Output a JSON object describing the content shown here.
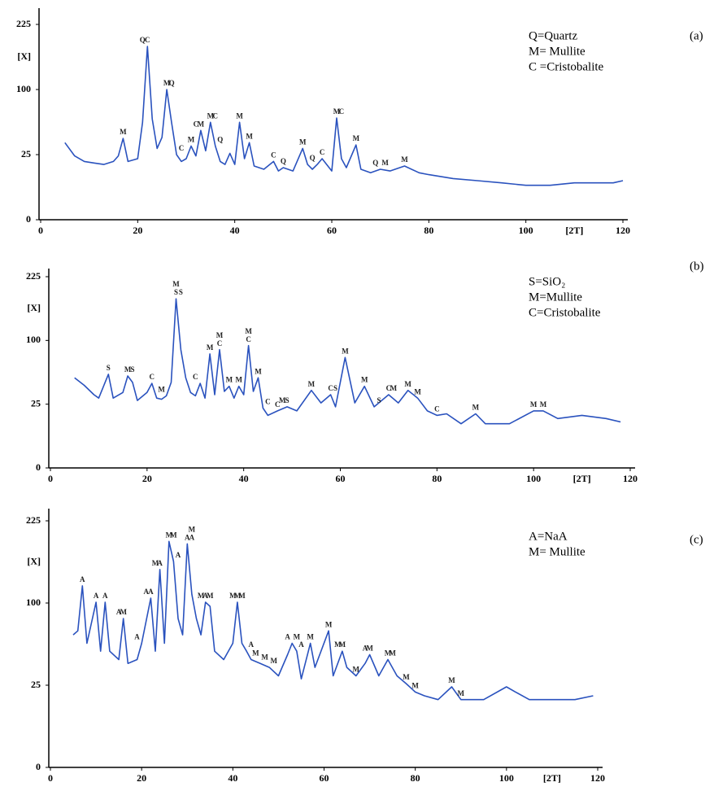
{
  "chart_data": [
    {
      "type": "line",
      "scale": "sqrt",
      "y_label": "[X]",
      "x_label": "[2T]",
      "panel_label": "(a)",
      "legend_lines": [
        "Q=Quartz",
        "M= Mullite",
        "C =Cristobalite"
      ],
      "xlim": [
        0,
        120
      ],
      "xticks": [
        0,
        20,
        40,
        60,
        80,
        100,
        120
      ],
      "ylim": [
        0,
        225
      ],
      "yticks": [
        0,
        25,
        100,
        225
      ],
      "x": [
        5,
        7,
        9,
        11,
        13,
        15,
        16,
        17,
        18,
        20,
        21,
        22,
        23,
        24,
        25,
        26,
        27,
        28,
        29,
        30,
        31,
        32,
        33,
        34,
        35,
        36,
        37,
        38,
        39,
        40,
        41,
        42,
        43,
        44,
        46,
        48,
        49,
        50,
        52,
        54,
        55,
        56,
        57,
        58,
        60,
        61,
        62,
        63,
        65,
        66,
        68,
        70,
        72,
        75,
        78,
        80,
        85,
        90,
        95,
        100,
        105,
        110,
        115,
        118,
        120
      ],
      "series": [
        {
          "color": "#2a52be",
          "values": [
            35,
            24,
            20,
            19,
            18,
            20,
            24,
            39,
            20,
            22,
            56,
            177,
            60,
            30,
            40,
            100,
            55,
            25,
            20,
            22,
            32,
            24,
            47,
            28,
            56,
            32,
            20,
            18,
            26,
            18,
            56,
            22,
            35,
            17,
            15,
            20,
            14,
            16,
            14,
            30,
            18,
            15,
            18,
            22,
            14,
            61,
            22,
            16,
            33,
            15,
            13,
            15,
            14,
            17,
            13,
            12,
            10,
            9,
            8,
            7,
            7,
            8,
            8,
            8,
            9
          ]
        }
      ],
      "peak_labels": [
        {
          "text": "M",
          "x": 17
        },
        {
          "text": "Q",
          "x": 21
        },
        {
          "text": "C",
          "x": 22
        },
        {
          "text": "M",
          "x": 26
        },
        {
          "text": "Q",
          "x": 27
        },
        {
          "text": "C",
          "x": 29
        },
        {
          "text": "M",
          "x": 31
        },
        {
          "text": "C",
          "x": 32
        },
        {
          "text": "M",
          "x": 33
        },
        {
          "text": "M",
          "x": 35
        },
        {
          "text": "C",
          "x": 36
        },
        {
          "text": "Q",
          "x": 37
        },
        {
          "text": "M",
          "x": 41
        },
        {
          "text": "M",
          "x": 43
        },
        {
          "text": "C",
          "x": 48
        },
        {
          "text": "Q",
          "x": 50
        },
        {
          "text": "M",
          "x": 54
        },
        {
          "text": "Q",
          "x": 56
        },
        {
          "text": "C",
          "x": 58
        },
        {
          "text": "M",
          "x": 61
        },
        {
          "text": "C",
          "x": 62
        },
        {
          "text": "M",
          "x": 65
        },
        {
          "text": "Q",
          "x": 69
        },
        {
          "text": "M",
          "x": 71
        },
        {
          "text": "M",
          "x": 75
        }
      ]
    },
    {
      "type": "line",
      "scale": "sqrt",
      "y_label": "[X]",
      "x_label": "[2T]",
      "panel_label": "(b)",
      "legend_lines": [
        "S=SiO₂",
        "M=Mullite",
        "C=Cristobalite"
      ],
      "xlim": [
        0,
        120
      ],
      "xticks": [
        0,
        20,
        40,
        60,
        80,
        100,
        120
      ],
      "ylim": [
        0,
        225
      ],
      "yticks": [
        0,
        25,
        100,
        225
      ],
      "x": [
        5,
        7,
        9,
        10,
        12,
        13,
        15,
        16,
        17,
        18,
        20,
        21,
        22,
        23,
        24,
        25,
        26,
        27,
        28,
        29,
        30,
        31,
        32,
        33,
        34,
        35,
        36,
        37,
        38,
        39,
        40,
        41,
        42,
        43,
        44,
        45,
        47,
        49,
        51,
        54,
        56,
        58,
        59,
        61,
        63,
        65,
        67,
        70,
        72,
        74,
        76,
        78,
        80,
        82,
        85,
        88,
        90,
        95,
        100,
        102,
        105,
        110,
        115,
        118
      ],
      "series": [
        {
          "color": "#2a52be",
          "values": [
            50,
            42,
            33,
            30,
            54,
            30,
            35,
            52,
            45,
            28,
            35,
            44,
            30,
            29,
            32,
            45,
            176,
            86,
            50,
            35,
            32,
            44,
            30,
            80,
            33,
            86,
            36,
            41,
            30,
            41,
            33,
            92,
            36,
            50,
            22,
            17,
            20,
            23,
            20,
            37,
            26,
            33,
            23,
            75,
            26,
            41,
            23,
            33,
            26,
            37,
            30,
            20,
            17,
            18,
            12,
            18,
            12,
            12,
            20,
            20,
            15,
            17,
            15,
            13
          ]
        }
      ],
      "peak_labels": [
        {
          "text": "S",
          "x": 12
        },
        {
          "text": "M",
          "x": 16
        },
        {
          "text": "S",
          "x": 17
        },
        {
          "text": "C",
          "x": 21
        },
        {
          "text": "M",
          "x": 23
        },
        {
          "text": "S",
          "x": 26
        },
        {
          "text": "M",
          "x": 26
        },
        {
          "text": "S",
          "x": 27
        },
        {
          "text": "C",
          "x": 30
        },
        {
          "text": "M",
          "x": 33
        },
        {
          "text": "C",
          "x": 35
        },
        {
          "text": "M",
          "x": 35
        },
        {
          "text": "M",
          "x": 37
        },
        {
          "text": "M",
          "x": 39
        },
        {
          "text": "C",
          "x": 41
        },
        {
          "text": "M",
          "x": 41
        },
        {
          "text": "M",
          "x": 43
        },
        {
          "text": "C",
          "x": 45
        },
        {
          "text": "C",
          "x": 47
        },
        {
          "text": "M",
          "x": 48
        },
        {
          "text": "S",
          "x": 49
        },
        {
          "text": "M",
          "x": 54
        },
        {
          "text": "C",
          "x": 58
        },
        {
          "text": "S",
          "x": 59
        },
        {
          "text": "M",
          "x": 61
        },
        {
          "text": "M",
          "x": 65
        },
        {
          "text": "S",
          "x": 68
        },
        {
          "text": "C",
          "x": 70
        },
        {
          "text": "M",
          "x": 71
        },
        {
          "text": "M",
          "x": 74
        },
        {
          "text": "M",
          "x": 76
        },
        {
          "text": "C",
          "x": 80
        },
        {
          "text": "M",
          "x": 88
        },
        {
          "text": "M",
          "x": 100
        },
        {
          "text": "M",
          "x": 102
        }
      ]
    },
    {
      "type": "line",
      "scale": "sqrt",
      "y_label": "[X]",
      "x_label": "[2T]",
      "panel_label": "(c)",
      "legend_lines": [
        "A=NaA",
        "M= Mullite"
      ],
      "xlim": [
        0,
        120
      ],
      "xticks": [
        0,
        20,
        40,
        60,
        80,
        100,
        120
      ],
      "ylim": [
        0,
        225
      ],
      "yticks": [
        0,
        25,
        100,
        225
      ],
      "x": [
        5,
        6,
        7,
        8,
        10,
        11,
        12,
        13,
        15,
        16,
        17,
        19,
        20,
        22,
        23,
        24,
        25,
        26,
        27,
        28,
        29,
        30,
        31,
        32,
        33,
        34,
        35,
        36,
        38,
        40,
        41,
        42,
        43,
        44,
        46,
        48,
        50,
        52,
        53,
        54,
        55,
        57,
        58,
        61,
        62,
        64,
        65,
        67,
        69,
        70,
        72,
        74,
        76,
        78,
        80,
        82,
        85,
        88,
        90,
        95,
        100,
        102,
        105,
        110,
        115,
        119
      ],
      "series": [
        {
          "color": "#2a52be",
          "values": [
            65,
            69,
            122,
            57,
            101,
            50,
            101,
            50,
            43,
            82,
            40,
            43,
            57,
            106,
            50,
            145,
            57,
            189,
            157,
            82,
            65,
            185,
            111,
            82,
            65,
            101,
            96,
            50,
            43,
            57,
            101,
            57,
            50,
            43,
            40,
            37,
            31,
            47,
            57,
            50,
            29,
            57,
            37,
            69,
            31,
            50,
            37,
            31,
            40,
            47,
            31,
            43,
            31,
            26,
            21,
            19,
            17,
            24,
            17,
            17,
            24,
            21,
            17,
            17,
            17,
            19
          ]
        }
      ],
      "peak_labels": [
        {
          "text": "A",
          "x": 7
        },
        {
          "text": "A",
          "x": 10
        },
        {
          "text": "A",
          "x": 12
        },
        {
          "text": "A",
          "x": 15
        },
        {
          "text": "M",
          "x": 16
        },
        {
          "text": "A",
          "x": 19
        },
        {
          "text": "A",
          "x": 21
        },
        {
          "text": "A",
          "x": 22
        },
        {
          "text": "M",
          "x": 23
        },
        {
          "text": "A",
          "x": 24
        },
        {
          "text": "M",
          "x": 26
        },
        {
          "text": "M",
          "x": 27
        },
        {
          "text": "A",
          "x": 28
        },
        {
          "text": "A",
          "x": 30
        },
        {
          "text": "A",
          "x": 31
        },
        {
          "text": "M",
          "x": 31
        },
        {
          "text": "M",
          "x": 33
        },
        {
          "text": "A",
          "x": 34
        },
        {
          "text": "M",
          "x": 35
        },
        {
          "text": "M",
          "x": 40
        },
        {
          "text": "M",
          "x": 41
        },
        {
          "text": "M",
          "x": 42
        },
        {
          "text": "A",
          "x": 44
        },
        {
          "text": "M",
          "x": 45
        },
        {
          "text": "M",
          "x": 47
        },
        {
          "text": "M",
          "x": 49
        },
        {
          "text": "A",
          "x": 52
        },
        {
          "text": "M",
          "x": 54
        },
        {
          "text": "A",
          "x": 55
        },
        {
          "text": "M",
          "x": 57
        },
        {
          "text": "M",
          "x": 61
        },
        {
          "text": "M",
          "x": 63
        },
        {
          "text": "M",
          "x": 64
        },
        {
          "text": "M",
          "x": 67
        },
        {
          "text": "A",
          "x": 69
        },
        {
          "text": "M",
          "x": 70
        },
        {
          "text": "M",
          "x": 74
        },
        {
          "text": "M",
          "x": 75
        },
        {
          "text": "M",
          "x": 78
        },
        {
          "text": "M",
          "x": 80
        },
        {
          "text": "M",
          "x": 88
        },
        {
          "text": "M",
          "x": 90
        }
      ]
    }
  ]
}
